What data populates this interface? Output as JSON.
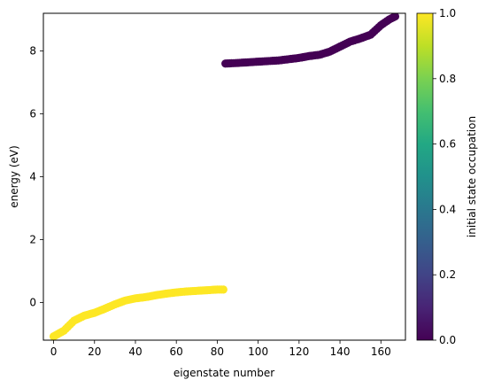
{
  "chart_data": {
    "type": "scatter",
    "title": "",
    "xlabel": "eigenstate number",
    "ylabel": "energy (eV)",
    "xlim": [
      -5,
      172
    ],
    "ylim": [
      -1.2,
      9.2
    ],
    "x_ticks": [
      0,
      20,
      40,
      60,
      80,
      100,
      120,
      140,
      160
    ],
    "y_ticks": [
      0,
      2,
      4,
      6,
      8
    ],
    "grid": false,
    "marker": "circle",
    "colormap": "viridis",
    "series": [
      {
        "color_value": 1.0,
        "color": "#fde725",
        "x": [
          0,
          5,
          10,
          15,
          20,
          25,
          30,
          35,
          40,
          45,
          50,
          55,
          60,
          65,
          70,
          75,
          80,
          83
        ],
        "y": [
          -1.08,
          -0.9,
          -0.58,
          -0.42,
          -0.33,
          -0.2,
          -0.06,
          0.06,
          0.13,
          0.17,
          0.23,
          0.28,
          0.32,
          0.35,
          0.37,
          0.39,
          0.41,
          0.41
        ]
      },
      {
        "color_value": 0.0,
        "color": "#440154",
        "x": [
          84,
          90,
          95,
          100,
          105,
          110,
          115,
          120,
          125,
          130,
          135,
          140,
          145,
          150,
          155,
          160,
          164,
          167
        ],
        "y": [
          7.6,
          7.62,
          7.64,
          7.66,
          7.68,
          7.7,
          7.74,
          7.78,
          7.84,
          7.88,
          7.98,
          8.14,
          8.3,
          8.4,
          8.52,
          8.82,
          9.0,
          9.1
        ]
      }
    ],
    "colorbar": {
      "label": "initial state occupation",
      "range": [
        0.0,
        1.0
      ],
      "ticks": [
        "0.0",
        "0.2",
        "0.4",
        "0.6",
        "0.8",
        "1.0"
      ]
    }
  }
}
